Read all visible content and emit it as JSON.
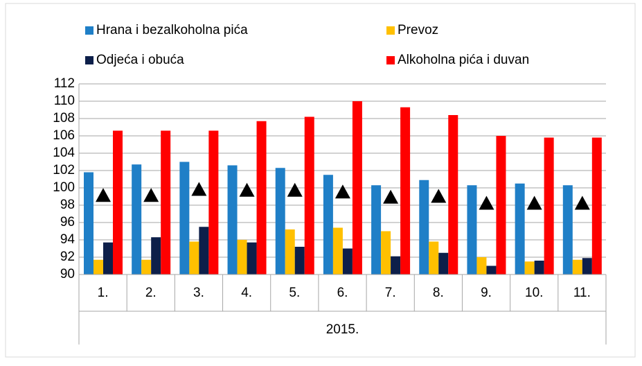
{
  "chart_data": {
    "type": "bar",
    "categories": [
      "1.",
      "2.",
      "3.",
      "4.",
      "5.",
      "6.",
      "7.",
      "8.",
      "9.",
      "10.",
      "11."
    ],
    "group_label": "2015.",
    "series": [
      {
        "name": "Hrana i bezalkoholna pića",
        "color": "#1f7fc7",
        "values": [
          101.8,
          102.7,
          103.0,
          102.6,
          102.3,
          101.5,
          100.3,
          100.9,
          100.3,
          100.5,
          100.3
        ]
      },
      {
        "name": "Prevoz",
        "color": "#ffc000",
        "values": [
          91.7,
          91.7,
          93.8,
          94.0,
          95.2,
          95.4,
          95.0,
          93.8,
          92.0,
          91.5,
          91.7
        ]
      },
      {
        "name": "Odjeća i obuća",
        "color": "#0d1f4a",
        "values": [
          93.7,
          94.3,
          95.5,
          93.7,
          93.2,
          93.0,
          92.1,
          92.5,
          91.0,
          91.6,
          91.9
        ]
      },
      {
        "name": "Alkoholna pića i duvan",
        "color": "#ff0000",
        "values": [
          106.6,
          106.6,
          106.6,
          107.7,
          108.2,
          110.0,
          109.3,
          108.4,
          106.0,
          105.8,
          105.8
        ]
      },
      {
        "color": "#000000",
        "marker": "triangle",
        "values": [
          99.1,
          99.1,
          99.8,
          99.7,
          99.7,
          99.5,
          98.9,
          99.0,
          98.2,
          98.2,
          98.2
        ]
      }
    ],
    "ylim": [
      90,
      112
    ],
    "yticks": [
      90,
      92,
      94,
      96,
      98,
      100,
      102,
      104,
      106,
      108,
      110,
      112
    ],
    "grid": true,
    "legend": "top"
  }
}
